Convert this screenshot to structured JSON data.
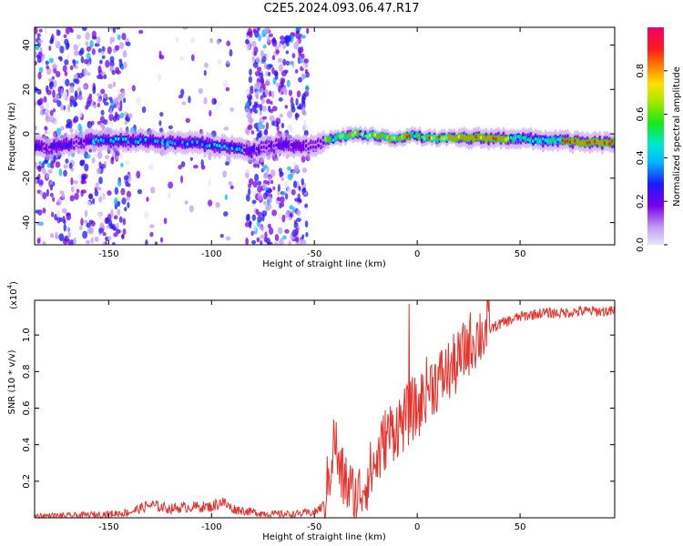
{
  "title": "C2E5.2024.093.06.47.R17",
  "chart_data": [
    {
      "type": "heatmap",
      "xlabel": "Height of straight line (km)",
      "ylabel": "Frequency (Hz)",
      "xlim": [
        -186,
        96
      ],
      "ylim": [
        -50,
        48
      ],
      "xticks": [
        -150,
        -100,
        -50,
        0,
        50
      ],
      "yticks": [
        -40,
        -20,
        0,
        20,
        40
      ],
      "ridge": {
        "x": [
          -180,
          -170,
          -160,
          -150,
          -140,
          -130,
          -120,
          -110,
          -100,
          -90,
          -82,
          -75,
          -65,
          -55,
          -50,
          -45,
          -40,
          -35,
          -30,
          -25,
          -20,
          -15,
          -10,
          -5,
          0,
          5,
          10,
          15,
          20,
          30,
          40,
          50,
          60,
          70,
          80,
          90,
          96
        ],
        "y": [
          -6,
          -5,
          -3,
          -3,
          -3,
          -3,
          -4,
          -4,
          -5,
          -6,
          -8,
          -6,
          -5,
          -6,
          -6,
          -3,
          -2,
          -1,
          0,
          -1,
          -1,
          -2,
          -2,
          -1,
          -1,
          -2,
          -2,
          -2,
          -2,
          -2,
          -2,
          -2,
          -3,
          -3,
          -4,
          -4,
          -4
        ]
      },
      "colorbar": {
        "label": "Normalized spectral amplitude",
        "ticks": [
          0.0,
          0.2,
          0.4,
          0.6,
          0.8
        ],
        "range": [
          0,
          1
        ]
      }
    },
    {
      "type": "line",
      "xlabel": "Height of straight line (km)",
      "ylabel": "SNR (10 * v/v)",
      "scale_label": "(x10",
      "scale_exp": "4",
      "xlim": [
        -186,
        96
      ],
      "ylim": [
        0,
        1.19
      ],
      "xticks": [
        -150,
        -100,
        -50,
        0,
        50
      ],
      "yticks": [
        0.2,
        0.4,
        0.6,
        0.8,
        1.0
      ],
      "color": "#e8312b",
      "series": [
        {
          "x": [
            -186,
            -170,
            -150,
            -140,
            -130,
            -120,
            -110,
            -100,
            -95,
            -90,
            -80,
            -70,
            -60,
            -50,
            -45,
            -42,
            -40,
            -38,
            -35,
            -30,
            -25,
            -20,
            -15,
            -10,
            -5,
            -2,
            0,
            5,
            10,
            15,
            20,
            25,
            30,
            40,
            50,
            60,
            70,
            80,
            90,
            96
          ],
          "values": [
            0.01,
            0.01,
            0.02,
            0.03,
            0.07,
            0.05,
            0.06,
            0.06,
            0.09,
            0.05,
            0.03,
            0.02,
            0.02,
            0.03,
            0.07,
            0.3,
            0.45,
            0.25,
            0.2,
            0.1,
            0.2,
            0.3,
            0.45,
            0.5,
            0.55,
            0.6,
            0.58,
            0.72,
            0.75,
            0.8,
            0.85,
            0.95,
            1.0,
            1.06,
            1.1,
            1.12,
            1.12,
            1.13,
            1.13,
            1.13
          ]
        }
      ]
    }
  ]
}
